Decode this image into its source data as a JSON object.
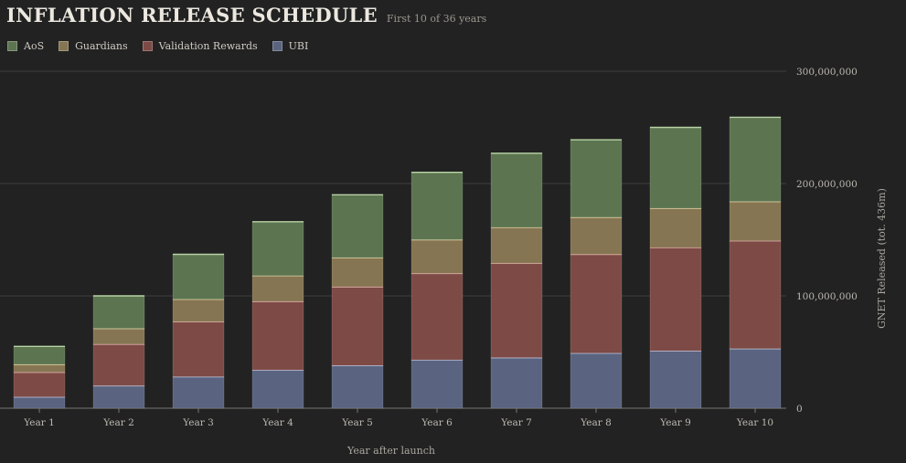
{
  "header": {
    "title": "INFLATION RELEASE SCHEDULE",
    "subtitle": "First 10 of 36 years"
  },
  "chart_data": {
    "type": "bar",
    "stacked": true,
    "categories": [
      "Year 1",
      "Year 2",
      "Year 3",
      "Year 4",
      "Year 5",
      "Year 6",
      "Year 7",
      "Year 8",
      "Year 9",
      "Year 10"
    ],
    "series": [
      {
        "name": "UBI",
        "color": "#5a6480",
        "edge": "#b8c2e0",
        "values": [
          10000000,
          20000000,
          28000000,
          34000000,
          38000000,
          43000000,
          45000000,
          49000000,
          51000000,
          53000000
        ]
      },
      {
        "name": "Validation Rewards",
        "color": "#7d4a46",
        "edge": "#e0a8a0",
        "values": [
          22000000,
          37000000,
          49000000,
          61000000,
          70000000,
          77000000,
          84000000,
          88000000,
          92000000,
          96000000
        ]
      },
      {
        "name": "Guardians",
        "color": "#867552",
        "edge": "#e6d3a0",
        "values": [
          7000000,
          14000000,
          20000000,
          23000000,
          26000000,
          30000000,
          32000000,
          33000000,
          35000000,
          35000000
        ]
      },
      {
        "name": "AoS",
        "color": "#5c7550",
        "edge": "#b8d4a6",
        "values": [
          16000000,
          29000000,
          40000000,
          48000000,
          56000000,
          60000000,
          66000000,
          69000000,
          72000000,
          75000000
        ]
      }
    ],
    "legend_order": [
      "AoS",
      "Guardians",
      "Validation Rewards",
      "UBI"
    ],
    "xlabel": "Year after launch",
    "ylabel": "GNET Released (tot. 436m)",
    "ylim": [
      0,
      300000000
    ],
    "yticks": [
      "0",
      "100,000,000",
      "200,000,000",
      "300,000,000"
    ],
    "ytick_values": [
      0,
      100000000,
      200000000,
      300000000
    ],
    "grid": true,
    "legend_position": "top-left",
    "y_axis_side": "right"
  }
}
